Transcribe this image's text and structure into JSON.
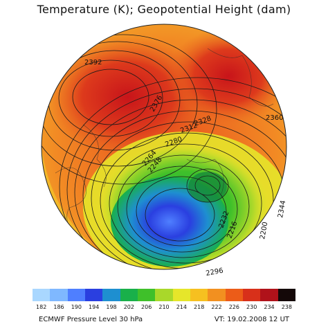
{
  "title": "Temperature (K); Geopotential Height (dam)",
  "footer": {
    "left": "ECMWF Pressure Level 30 hPa",
    "right": "VT: 19.02.2008 12 UT"
  },
  "colorbar": {
    "ticks": [
      "182",
      "186",
      "190",
      "194",
      "198",
      "202",
      "206",
      "210",
      "214",
      "218",
      "222",
      "226",
      "230",
      "234",
      "238"
    ],
    "colors": [
      "#a9d7ff",
      "#7fb8ff",
      "#4f7fff",
      "#2a3fe0",
      "#1e8fd0",
      "#19b04a",
      "#3fc02a",
      "#a9d82a",
      "#e6e62a",
      "#f6c020",
      "#f29020",
      "#ec5c18",
      "#d8301a",
      "#b0121a",
      "#140808"
    ]
  },
  "contour_labels": [
    "2392",
    "2376",
    "2360",
    "2344",
    "2328",
    "2312",
    "2296",
    "2280",
    "2264",
    "2248",
    "2232",
    "2216",
    "2200"
  ]
}
